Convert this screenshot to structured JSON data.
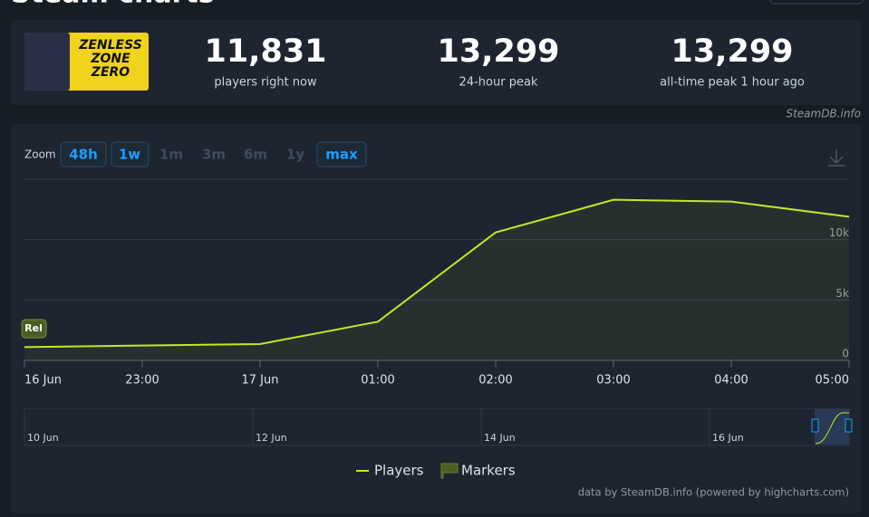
{
  "header": {
    "title": "Steam charts",
    "logo_text": [
      "ZENLESS",
      "ZONE",
      "ZERO"
    ]
  },
  "stats": [
    {
      "value": "11,831",
      "label": "players right now"
    },
    {
      "value": "13,299",
      "label": "24-hour peak"
    },
    {
      "value": "13,299",
      "label": "all-time peak 1 hour ago"
    }
  ],
  "source": "SteamDB.info",
  "zoom": {
    "label": "Zoom",
    "buttons": [
      "48h",
      "1w",
      "1m",
      "3m",
      "6m",
      "1y",
      "max"
    ]
  },
  "chart_data": {
    "type": "line",
    "x": [
      22,
      24,
      25,
      26,
      27,
      28,
      29
    ],
    "series": [
      {
        "name": "Players",
        "color": "#c5e625",
        "values": [
          1100,
          1350,
          3200,
          10600,
          13299,
          13150,
          11900
        ]
      }
    ],
    "xlim": [
      22,
      29
    ],
    "xticks": [
      {
        "value": 22,
        "label": "16 Jun"
      },
      {
        "value": 23,
        "label": "23:00"
      },
      {
        "value": 24,
        "label": "17 Jun"
      },
      {
        "value": 25,
        "label": "01:00"
      },
      {
        "value": 26,
        "label": "02:00"
      },
      {
        "value": 27,
        "label": "03:00"
      },
      {
        "value": 28,
        "label": "04:00"
      },
      {
        "value": 29,
        "label": "05:00"
      }
    ],
    "ylim": [
      0,
      15000
    ],
    "yticks": [
      0,
      {
        "value": 5000,
        "label": "5k"
      },
      {
        "value": 10000,
        "label": "10k"
      }
    ],
    "grid": true,
    "markers": {
      "name": "Markers",
      "color": "#4b5d23",
      "events": [
        {
          "x": 22,
          "label": "Rel"
        }
      ]
    },
    "navigator": {
      "labels": [
        "10 Jun",
        "12 Jun",
        "14 Jun",
        "16 Jun"
      ]
    },
    "credits": "data by SteamDB.info (powered by highcharts.com)"
  }
}
